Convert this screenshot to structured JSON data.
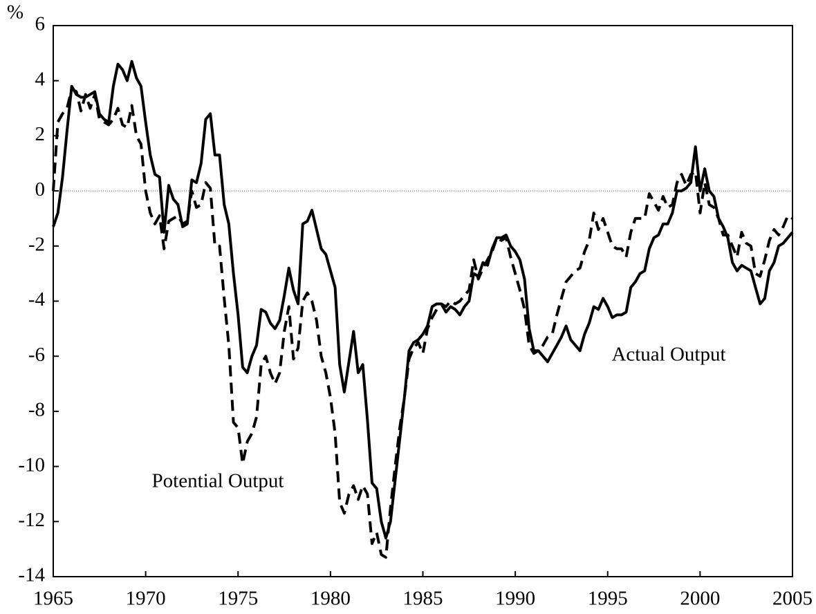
{
  "chart_data": {
    "type": "line",
    "y_label": "%",
    "annotations": [
      "Actual Output",
      "Potential Output"
    ],
    "x": [
      1965,
      1965.25,
      1965.5,
      1965.75,
      1966,
      1966.25,
      1966.5,
      1966.75,
      1967,
      1967.25,
      1967.5,
      1967.75,
      1968,
      1968.25,
      1968.5,
      1968.75,
      1969,
      1969.25,
      1969.5,
      1969.75,
      1970,
      1970.25,
      1970.5,
      1970.75,
      1971,
      1971.25,
      1971.5,
      1971.75,
      1972,
      1972.25,
      1972.5,
      1972.75,
      1973,
      1973.25,
      1973.5,
      1973.75,
      1974,
      1974.25,
      1974.5,
      1974.75,
      1975,
      1975.25,
      1975.5,
      1975.75,
      1976,
      1976.25,
      1976.5,
      1976.75,
      1977,
      1977.25,
      1977.5,
      1977.75,
      1978,
      1978.25,
      1978.5,
      1978.75,
      1979,
      1979.25,
      1979.5,
      1979.75,
      1980,
      1980.25,
      1980.5,
      1980.75,
      1981,
      1981.25,
      1981.5,
      1981.75,
      1982,
      1982.25,
      1982.5,
      1982.75,
      1983,
      1983.25,
      1983.5,
      1983.75,
      1984,
      1984.25,
      1984.5,
      1984.75,
      1985,
      1985.25,
      1985.5,
      1985.75,
      1986,
      1986.25,
      1986.5,
      1986.75,
      1987,
      1987.25,
      1987.5,
      1987.75,
      1988,
      1988.25,
      1988.5,
      1988.75,
      1989,
      1989.25,
      1989.5,
      1989.75,
      1990,
      1990.25,
      1990.5,
      1990.75,
      1991,
      1991.25,
      1991.5,
      1991.75,
      1992,
      1992.25,
      1992.5,
      1992.75,
      1993,
      1993.25,
      1993.5,
      1993.75,
      1994,
      1994.25,
      1994.5,
      1994.75,
      1995,
      1995.25,
      1995.5,
      1995.75,
      1996,
      1996.25,
      1996.5,
      1996.75,
      1997,
      1997.25,
      1997.5,
      1997.75,
      1998,
      1998.25,
      1998.5,
      1998.75,
      1999,
      1999.25,
      1999.5,
      1999.75,
      2000,
      2000.25,
      2000.5,
      2000.75,
      2001,
      2001.25,
      2001.5,
      2001.75,
      2002,
      2002.25,
      2002.5,
      2002.75,
      2003,
      2003.25,
      2003.5,
      2003.75,
      2004,
      2004.25,
      2004.5,
      2004.75,
      2005
    ],
    "series": [
      {
        "name": "Actual Output",
        "color": "#000000",
        "dash": false,
        "values": [
          -1.3,
          -0.8,
          0.5,
          2.2,
          3.8,
          3.5,
          3.4,
          3.4,
          3.5,
          3.6,
          2.8,
          2.6,
          2.5,
          3.8,
          4.6,
          4.4,
          4.0,
          4.7,
          4.1,
          3.8,
          2.5,
          1.3,
          0.6,
          0.5,
          -1.5,
          0.2,
          -0.3,
          -0.5,
          -1.3,
          -1.2,
          0.4,
          0.3,
          1.0,
          2.6,
          2.8,
          1.3,
          1.3,
          -0.5,
          -1.2,
          -3.0,
          -4.5,
          -6.4,
          -6.6,
          -6.0,
          -5.6,
          -4.3,
          -4.4,
          -4.8,
          -5.0,
          -4.7,
          -3.8,
          -2.8,
          -3.6,
          -4.1,
          -1.2,
          -1.1,
          -0.7,
          -1.4,
          -2.1,
          -2.3,
          -2.9,
          -3.5,
          -6.3,
          -7.3,
          -6.2,
          -5.1,
          -6.6,
          -6.3,
          -8.3,
          -10.6,
          -10.8,
          -12.0,
          -12.6,
          -12.0,
          -10.5,
          -9.0,
          -7.5,
          -5.8,
          -5.5,
          -5.4,
          -5.2,
          -4.9,
          -4.2,
          -4.1,
          -4.1,
          -4.4,
          -4.2,
          -4.3,
          -4.5,
          -4.2,
          -4.0,
          -3.0,
          -3.1,
          -2.6,
          -2.7,
          -2.1,
          -1.7,
          -1.7,
          -1.6,
          -2.0,
          -2.2,
          -2.5,
          -3.2,
          -5.0,
          -5.8,
          -5.8,
          -6.0,
          -6.2,
          -5.9,
          -5.6,
          -5.3,
          -4.9,
          -5.4,
          -5.6,
          -5.8,
          -5.2,
          -4.8,
          -4.2,
          -4.3,
          -3.9,
          -4.2,
          -4.6,
          -4.5,
          -4.5,
          -4.4,
          -3.5,
          -3.3,
          -3.0,
          -2.9,
          -2.1,
          -1.7,
          -1.6,
          -1.2,
          -1.2,
          -0.8,
          0.0,
          0.0,
          0.1,
          0.3,
          1.6,
          0.0,
          0.8,
          0.0,
          -0.2,
          -1.0,
          -1.3,
          -1.7,
          -2.6,
          -2.9,
          -2.7,
          -2.8,
          -2.9,
          -3.5,
          -4.1,
          -3.9,
          -2.9,
          -2.6,
          -2.0,
          -1.9,
          -1.7,
          -1.5
        ]
      },
      {
        "name": "Potential Output",
        "color": "#000000",
        "dash": true,
        "values": [
          0.0,
          2.5,
          2.8,
          3.0,
          3.7,
          3.6,
          2.9,
          3.5,
          3.0,
          3.5,
          2.6,
          2.5,
          2.4,
          2.6,
          3.0,
          2.4,
          2.3,
          3.1,
          2.0,
          1.7,
          0.0,
          -0.8,
          -1.2,
          -0.9,
          -2.1,
          -1.1,
          -1.0,
          -0.9,
          -1.2,
          -1.1,
          0.0,
          -0.6,
          -0.5,
          0.3,
          0.1,
          -2.0,
          -2.0,
          -3.9,
          -5.6,
          -8.4,
          -8.6,
          -9.9,
          -9.1,
          -8.8,
          -8.2,
          -6.3,
          -6.0,
          -6.6,
          -7.0,
          -6.6,
          -5.1,
          -4.2,
          -6.1,
          -5.7,
          -4.0,
          -3.7,
          -4.0,
          -4.7,
          -6.0,
          -6.6,
          -7.5,
          -8.8,
          -11.3,
          -11.7,
          -11.0,
          -10.7,
          -11.2,
          -10.7,
          -11.0,
          -12.8,
          -12.4,
          -13.2,
          -13.3,
          -11.5,
          -10.0,
          -8.6,
          -7.5,
          -6.1,
          -5.7,
          -5.5,
          -5.9,
          -5.0,
          -4.6,
          -4.3,
          -4.1,
          -4.2,
          -4.0,
          -4.1,
          -4.0,
          -3.8,
          -3.6,
          -2.5,
          -3.2,
          -2.8,
          -2.5,
          -2.2,
          -1.7,
          -1.8,
          -1.7,
          -2.4,
          -3.0,
          -3.6,
          -4.3,
          -5.6,
          -5.9,
          -5.8,
          -5.6,
          -5.3,
          -5.2,
          -4.5,
          -3.9,
          -3.3,
          -3.1,
          -2.9,
          -2.8,
          -2.2,
          -1.8,
          -0.8,
          -1.4,
          -1.0,
          -1.5,
          -2.0,
          -2.1,
          -2.1,
          -2.4,
          -1.5,
          -1.0,
          -1.0,
          -1.0,
          -0.1,
          -0.4,
          -0.7,
          -0.2,
          -0.6,
          -0.5,
          0.3,
          0.6,
          0.2,
          0.6,
          0.7,
          -0.8,
          0.3,
          -0.5,
          -0.6,
          -1.0,
          -1.6,
          -1.6,
          -2.0,
          -2.4,
          -1.5,
          -1.9,
          -2.0,
          -3.0,
          -3.1,
          -2.5,
          -1.8,
          -1.4,
          -1.6,
          -1.3,
          -0.9,
          -1.0
        ]
      }
    ],
    "xlim": [
      1965,
      2005
    ],
    "xticks": [
      1965,
      1970,
      1975,
      1980,
      1985,
      1990,
      1995,
      2000,
      2005
    ],
    "ylim": [
      -14,
      6
    ],
    "yticks": [
      6,
      4,
      2,
      0,
      -2,
      -4,
      -6,
      -8,
      -10,
      -12,
      -14
    ],
    "zero_line": true
  }
}
